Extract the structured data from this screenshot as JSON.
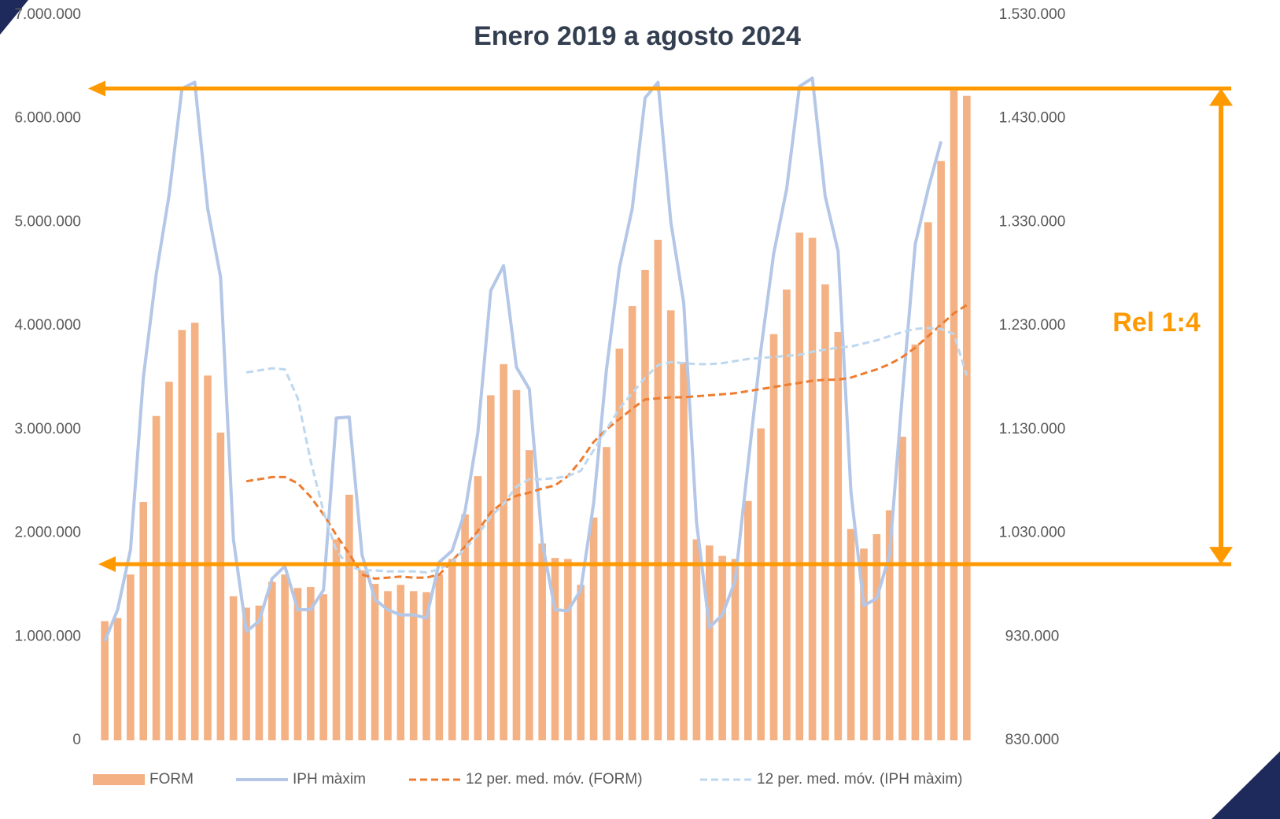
{
  "chart_data": {
    "type": "bar_line",
    "title": "Enero 2019 a agosto 2024",
    "annotation": "Rel 1:4",
    "arrow_levels": [
      6290000,
      1700000
    ],
    "arrow_color": "#ff9900",
    "ylim": [
      0,
      7000000
    ],
    "yticks": [
      0,
      {
        "value": 1000000,
        "label": "1.000.000"
      },
      {
        "value": 2000000,
        "label": "2.000.000"
      },
      {
        "value": 3000000,
        "label": "3.000.000"
      },
      {
        "value": 4000000,
        "label": "4.000.000"
      },
      {
        "value": 5000000,
        "label": "5.000.000"
      },
      {
        "value": 6000000,
        "label": "6.000.000"
      },
      {
        "value": 7000000,
        "label": "7.000.000"
      }
    ],
    "y2lim": [
      830000,
      1530000
    ],
    "y2ticks": [
      {
        "value": 830000,
        "label": "830.000"
      },
      {
        "value": 930000,
        "label": "930.000"
      },
      {
        "value": 1030000,
        "label": "1.030.000"
      },
      {
        "value": 1130000,
        "label": "1.130.000"
      },
      {
        "value": 1230000,
        "label": "1.230.000"
      },
      {
        "value": 1330000,
        "label": "1.330.000"
      },
      {
        "value": 1430000,
        "label": "1.430.000"
      },
      {
        "value": 1530000,
        "label": "1.530.000"
      }
    ],
    "series": [
      {
        "name": "FORM",
        "kind": "bar",
        "color": "#f4b183",
        "values": [
          1150000,
          1180000,
          1600000,
          2300000,
          3130000,
          3460000,
          3960000,
          4030000,
          3520000,
          2970000,
          1390000,
          1280000,
          1300000,
          1530000,
          1600000,
          1470000,
          1480000,
          1410000,
          1940000,
          2370000,
          1640000,
          1510000,
          1440000,
          1500000,
          1440000,
          1430000,
          1600000,
          1750000,
          2180000,
          2550000,
          3330000,
          3630000,
          3380000,
          2800000,
          1900000,
          1760000,
          1750000,
          1500000,
          2150000,
          2830000,
          3780000,
          4190000,
          4540000,
          4830000,
          4150000,
          3650000,
          1940000,
          1880000,
          1780000,
          1750000,
          2310000,
          3010000,
          3920000,
          4350000,
          4900000,
          4850000,
          4400000,
          3940000,
          2040000,
          1850000,
          1990000,
          2220000,
          2930000,
          3820000,
          5000000,
          5590000,
          6270000,
          6220000
        ]
      },
      {
        "name": "IPH màxim",
        "kind": "line",
        "axis": "y2",
        "color": "#b4c7e7",
        "dashed": false,
        "values": [
          925700,
          956000,
          1014000,
          1180000,
          1280000,
          1356000,
          1459000,
          1465000,
          1343000,
          1277000,
          1024000,
          935000,
          945000,
          986000,
          998000,
          956000,
          956000,
          975000,
          1141000,
          1142000,
          1009000,
          966000,
          956000,
          951000,
          951000,
          948000,
          1002000,
          1013000,
          1051000,
          1127000,
          1264000,
          1288000,
          1190000,
          1169000,
          1021000,
          956000,
          955000,
          975000,
          1059000,
          1188000,
          1286000,
          1343000,
          1450000,
          1465000,
          1330000,
          1252000,
          1040000,
          939000,
          951000,
          984000,
          1096000,
          1207000,
          1300000,
          1362000,
          1461000,
          1469000,
          1355000,
          1302000,
          1070000,
          960000,
          967000,
          1009000,
          1165000,
          1309000,
          1362000,
          1408000,
          null,
          null
        ]
      },
      {
        "name": "12 per. med. móv. (FORM)",
        "kind": "line",
        "color": "#ed7d31",
        "dashed": true,
        "values": [
          null,
          null,
          null,
          null,
          null,
          null,
          null,
          null,
          null,
          null,
          null,
          2500000,
          2520000,
          2540000,
          2540000,
          2480000,
          2350000,
          2180000,
          1980000,
          1800000,
          1600000,
          1560000,
          1570000,
          1580000,
          1570000,
          1570000,
          1600000,
          1730000,
          1870000,
          2020000,
          2200000,
          2300000,
          2360000,
          2390000,
          2430000,
          2460000,
          2550000,
          2700000,
          2880000,
          3000000,
          3100000,
          3200000,
          3290000,
          3300000,
          3310000,
          3310000,
          3320000,
          3330000,
          3340000,
          3350000,
          3370000,
          3390000,
          3410000,
          3430000,
          3450000,
          3470000,
          3480000,
          3480000,
          3500000,
          3540000,
          3580000,
          3630000,
          3700000,
          3790000,
          3900000,
          4010000,
          4120000,
          4200000
        ]
      },
      {
        "name": "12 per. med. móv. (IPH màxim)",
        "kind": "line",
        "axis": "y2",
        "color": "#bdd7ee",
        "dashed": true,
        "values": [
          null,
          null,
          null,
          null,
          null,
          null,
          null,
          null,
          null,
          null,
          null,
          1185000,
          1187000,
          1189000,
          1188000,
          1160000,
          1100000,
          1051000,
          1013000,
          998000,
          994000,
          994000,
          993000,
          993000,
          993000,
          992000,
          995000,
          1002000,
          1015000,
          1028000,
          1046000,
          1058000,
          1075000,
          1082000,
          1082000,
          1083000,
          1085000,
          1090000,
          1110000,
          1130000,
          1150000,
          1165000,
          1180000,
          1192000,
          1195000,
          1194000,
          1193000,
          1193000,
          1194000,
          1196000,
          1198000,
          1199000,
          1200000,
          1201000,
          1202000,
          1205000,
          1207000,
          1209000,
          1210000,
          1213000,
          1216000,
          1220000,
          1224000,
          1227000,
          1228000,
          1227000,
          1222000,
          1182000
        ]
      }
    ]
  }
}
